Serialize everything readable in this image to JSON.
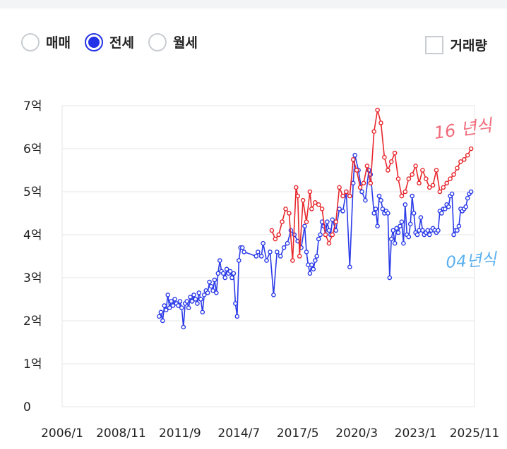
{
  "controls": {
    "radios": [
      {
        "label": "매매",
        "selected": false
      },
      {
        "label": "전세",
        "selected": true
      },
      {
        "label": "월세",
        "selected": false
      }
    ],
    "volume_label": "거래량",
    "volume_checked": false
  },
  "chart_data": {
    "type": "line",
    "title": "",
    "ylim": [
      0,
      7
    ],
    "xlim": [
      "2006-01",
      "2025-11"
    ],
    "y_ticks": [
      0,
      1,
      2,
      3,
      4,
      5,
      6,
      7
    ],
    "y_tick_labels": [
      "0",
      "1억",
      "2억",
      "3억",
      "4억",
      "5억",
      "6억",
      "7억"
    ],
    "x_ticks": [
      "2006-01",
      "2008-11",
      "2011-09",
      "2014-07",
      "2017-05",
      "2020-03",
      "2023-01",
      "2025-11"
    ],
    "x_tick_labels": [
      "2006/1",
      "2008/11",
      "2011/9",
      "2014/7",
      "2017/5",
      "2020/3",
      "2023/1",
      "2025/11"
    ],
    "grid": true,
    "annotations": [
      {
        "text": "16 년식",
        "color": "#f06a7a"
      },
      {
        "text": "04년식",
        "color": "#5ab0ef"
      }
    ],
    "series": [
      {
        "color": "#2b3be8",
        "x": [
          "2010-09",
          "2010-10",
          "2010-11",
          "2010-12",
          "2011-01",
          "2011-02",
          "2011-03",
          "2011-04",
          "2011-05",
          "2011-06",
          "2011-07",
          "2011-08",
          "2011-09",
          "2011-10",
          "2011-11",
          "2011-12",
          "2012-01",
          "2012-02",
          "2012-03",
          "2012-04",
          "2012-05",
          "2012-06",
          "2012-07",
          "2012-08",
          "2012-09",
          "2012-10",
          "2012-11",
          "2012-12",
          "2013-01",
          "2013-02",
          "2013-03",
          "2013-04",
          "2013-05",
          "2013-06",
          "2013-07",
          "2013-08",
          "2013-09",
          "2013-10",
          "2013-11",
          "2013-12",
          "2014-01",
          "2014-02",
          "2014-03",
          "2014-04",
          "2014-05",
          "2014-06",
          "2014-07",
          "2014-08",
          "2014-09",
          "2014-10",
          "2015-05",
          "2015-06",
          "2015-08",
          "2015-09",
          "2015-11",
          "2016-01",
          "2016-03",
          "2016-05",
          "2016-07",
          "2016-09",
          "2016-11",
          "2017-01",
          "2017-03",
          "2017-05",
          "2017-07",
          "2017-09",
          "2017-10",
          "2017-11",
          "2017-12",
          "2018-01",
          "2018-02",
          "2018-03",
          "2018-04",
          "2018-05",
          "2018-06",
          "2018-07",
          "2018-08",
          "2018-09",
          "2018-10",
          "2018-11",
          "2018-12",
          "2019-01",
          "2019-03",
          "2019-05",
          "2019-07",
          "2019-09",
          "2019-11",
          "2020-01",
          "2020-02",
          "2020-04",
          "2020-06",
          "2020-08",
          "2020-10",
          "2020-11",
          "2021-01",
          "2021-02",
          "2021-03",
          "2021-04",
          "2021-05",
          "2021-06",
          "2021-07",
          "2021-08",
          "2021-09",
          "2021-10",
          "2021-11",
          "2021-12",
          "2022-01",
          "2022-02",
          "2022-03",
          "2022-04",
          "2022-05",
          "2022-06",
          "2022-07",
          "2022-08",
          "2022-09",
          "2022-10",
          "2022-11",
          "2022-12",
          "2023-01",
          "2023-02",
          "2023-03",
          "2023-04",
          "2023-05",
          "2023-06",
          "2023-07",
          "2023-08",
          "2023-09",
          "2023-10",
          "2023-11",
          "2023-12",
          "2024-01",
          "2024-02",
          "2024-03",
          "2024-04",
          "2024-05",
          "2024-06",
          "2024-07",
          "2024-08",
          "2024-09",
          "2024-10",
          "2024-11",
          "2024-12",
          "2025-01",
          "2025-02",
          "2025-03",
          "2025-04",
          "2025-05",
          "2025-06",
          "2025-07",
          "2025-08",
          "2025-09"
        ],
        "values": [
          2.1,
          2.2,
          2.0,
          2.35,
          2.25,
          2.6,
          2.3,
          2.45,
          2.35,
          2.5,
          2.4,
          2.35,
          2.45,
          2.3,
          1.85,
          2.4,
          2.45,
          2.3,
          2.55,
          2.45,
          2.6,
          2.5,
          2.4,
          2.65,
          2.5,
          2.2,
          2.6,
          2.7,
          2.65,
          2.9,
          2.8,
          2.7,
          2.95,
          2.65,
          3.1,
          3.4,
          3.15,
          3.1,
          3.0,
          3.2,
          3.1,
          3.15,
          3.0,
          3.1,
          2.4,
          2.1,
          3.4,
          3.7,
          3.7,
          3.6,
          3.5,
          3.6,
          3.5,
          3.8,
          3.4,
          3.6,
          2.6,
          3.6,
          3.5,
          3.7,
          3.8,
          4.1,
          4.0,
          3.85,
          3.7,
          4.2,
          3.6,
          3.3,
          3.1,
          3.3,
          3.2,
          3.4,
          3.5,
          3.9,
          4.0,
          4.3,
          4.2,
          4.0,
          4.3,
          4.1,
          4.0,
          4.35,
          4.1,
          4.6,
          4.55,
          5.0,
          3.25,
          5.2,
          5.85,
          5.5,
          5.0,
          4.8,
          5.5,
          5.4,
          4.5,
          4.6,
          4.2,
          4.9,
          4.8,
          4.6,
          4.5,
          4.55,
          4.5,
          3.0,
          3.9,
          4.1,
          3.8,
          4.15,
          4.05,
          4.2,
          4.3,
          3.8,
          4.7,
          4.0,
          3.95,
          4.25,
          4.9,
          4.5,
          4.05,
          4.0,
          4.1,
          4.4,
          4.1,
          4.0,
          4.05,
          4.1,
          4.0,
          4.1,
          4.15,
          4.1,
          4.05,
          4.1,
          4.55,
          4.5,
          4.6,
          4.6,
          4.7,
          4.65,
          4.9,
          4.95,
          4.0,
          4.1,
          4.1,
          4.2,
          4.6,
          4.55,
          4.6,
          4.65,
          4.85,
          4.95,
          5.0
        ]
      },
      {
        "color": "#e8262b",
        "x": [
          "2016-02",
          "2016-04",
          "2016-06",
          "2016-08",
          "2016-10",
          "2016-12",
          "2017-02",
          "2017-04",
          "2017-05",
          "2017-06",
          "2017-08",
          "2017-10",
          "2017-12",
          "2018-01",
          "2018-03",
          "2018-05",
          "2018-07",
          "2018-09",
          "2018-11",
          "2019-01",
          "2019-03",
          "2019-05",
          "2019-07",
          "2019-09",
          "2019-11",
          "2020-01",
          "2020-03",
          "2020-05",
          "2020-07",
          "2020-09",
          "2020-11",
          "2021-01",
          "2021-03",
          "2021-05",
          "2021-07",
          "2021-09",
          "2021-11",
          "2022-01",
          "2022-03",
          "2022-05",
          "2022-07",
          "2022-09",
          "2022-11",
          "2023-01",
          "2023-03",
          "2023-05",
          "2023-07",
          "2023-09",
          "2023-11",
          "2024-01",
          "2024-03",
          "2024-05",
          "2024-07",
          "2024-09",
          "2024-11",
          "2025-01",
          "2025-03",
          "2025-05",
          "2025-07",
          "2025-09"
        ],
        "values": [
          4.1,
          3.9,
          4.0,
          4.3,
          4.6,
          4.5,
          3.4,
          5.1,
          4.9,
          3.5,
          4.8,
          4.3,
          5.0,
          4.6,
          4.75,
          4.7,
          4.6,
          4.0,
          3.8,
          4.0,
          4.3,
          5.1,
          4.9,
          5.0,
          4.9,
          5.75,
          5.5,
          5.1,
          5.2,
          5.6,
          5.2,
          6.4,
          6.9,
          6.6,
          5.8,
          5.5,
          5.7,
          5.9,
          5.3,
          4.9,
          5.0,
          5.3,
          5.4,
          5.6,
          5.2,
          5.5,
          5.3,
          5.1,
          5.15,
          5.5,
          5.0,
          5.1,
          5.2,
          5.3,
          5.4,
          5.55,
          5.7,
          5.75,
          5.85,
          6.0
        ]
      }
    ]
  }
}
